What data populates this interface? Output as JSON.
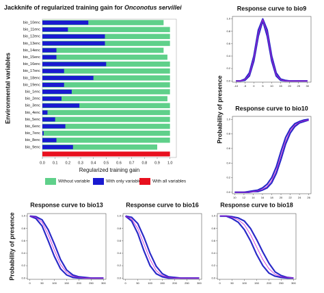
{
  "chart_data": [
    {
      "type": "hbar",
      "title": "Jackknife of regularized training gain for ",
      "title_italic": "Onconotus servillei",
      "xlabel": "Regularized training gain",
      "ylabel": "Environmental variables",
      "categories": [
        "bio_10enc",
        "bio_11enc",
        "bio_12enc",
        "bio_13enc",
        "bio_14enc",
        "bio_15enc",
        "bio_16enc",
        "bio_17enc",
        "bio_18enc",
        "bio_19enc",
        "bio_1enc",
        "bio_2enc",
        "bio_3enc",
        "bio_4enc",
        "bio_5enc",
        "bio_6enc",
        "bio_7enc",
        "bio_8enc",
        "bio_9enc"
      ],
      "series": [
        {
          "name": "Without variable",
          "color": "#5fd08a",
          "values": [
            0.95,
            1.0,
            1.0,
            1.0,
            0.95,
            0.98,
            1.0,
            1.0,
            1.0,
            1.0,
            1.0,
            0.98,
            1.0,
            1.0,
            1.0,
            1.0,
            1.0,
            1.0,
            0.9
          ]
        },
        {
          "name": "With only variable",
          "color": "#1a1ad0",
          "values": [
            0.36,
            0.2,
            0.49,
            0.49,
            0.11,
            0.11,
            0.5,
            0.17,
            0.4,
            0.17,
            0.23,
            0.15,
            0.29,
            0.04,
            0.1,
            0.18,
            0.01,
            0.11,
            0.24
          ]
        }
      ],
      "all_variables": {
        "name": "With all variables",
        "color": "#e8101e",
        "value": 1.0
      },
      "xlim": [
        0,
        1.05
      ],
      "xticks": [
        {
          "value": 0,
          "label": "0.0"
        },
        0.1,
        0.2,
        0.3,
        0.4,
        0.5,
        0.6,
        0.7,
        0.8,
        0.9,
        {
          "value": 1,
          "label": "1.0"
        }
      ]
    },
    {
      "type": "line",
      "title": "Response curve to bio9",
      "x": [
        -10,
        -7.5,
        -5,
        -2.5,
        0,
        2.5,
        5,
        7.5,
        10,
        12.5,
        15,
        17.5,
        20,
        22.5,
        25,
        27.5,
        30
      ],
      "series": [
        {
          "color": "#2a2ac8",
          "values": [
            0,
            0,
            0.03,
            0.13,
            0.4,
            0.82,
            1.0,
            0.82,
            0.4,
            0.13,
            0.03,
            0.01,
            0,
            0,
            0,
            0,
            0
          ]
        },
        {
          "color": "#2a2ac8",
          "values": [
            0,
            0,
            0.01,
            0.08,
            0.32,
            0.72,
            0.97,
            0.72,
            0.32,
            0.08,
            0.01,
            0,
            0,
            0,
            0,
            0,
            0
          ]
        },
        {
          "color": "#d020d0",
          "values": [
            0,
            0,
            0.02,
            0.1,
            0.36,
            0.77,
            0.99,
            0.77,
            0.36,
            0.1,
            0.02,
            0,
            0,
            0,
            0,
            0,
            0
          ]
        }
      ],
      "xlim": [
        -12,
        32
      ],
      "xticks": [
        -10,
        -5,
        0,
        5,
        10,
        15,
        20,
        25,
        30
      ],
      "ylim": [
        -0.02,
        1.04
      ],
      "yticks": [
        {
          "value": 0,
          "label": "0.0"
        },
        0.2,
        0.4,
        0.6,
        0.8,
        {
          "value": 1,
          "label": "1.0"
        }
      ]
    },
    {
      "type": "line",
      "title": "Response curve to bio10",
      "ylabel": "Probability of presence",
      "x": [
        10,
        11,
        12,
        13,
        14,
        15,
        16,
        17,
        18,
        19,
        20,
        21,
        22,
        23,
        24,
        25,
        26
      ],
      "series": [
        {
          "color": "#2a2ac8",
          "values": [
            0,
            0,
            0,
            0.01,
            0.02,
            0.03,
            0.06,
            0.11,
            0.2,
            0.35,
            0.56,
            0.75,
            0.87,
            0.94,
            0.97,
            0.99,
            1.0
          ]
        },
        {
          "color": "#2a2ac8",
          "values": [
            0,
            0,
            0,
            0,
            0.01,
            0.01,
            0.03,
            0.06,
            0.13,
            0.26,
            0.45,
            0.66,
            0.81,
            0.9,
            0.95,
            0.97,
            0.99
          ]
        },
        {
          "color": "#d020d0",
          "values": [
            0,
            0,
            0,
            0,
            0.01,
            0.02,
            0.04,
            0.08,
            0.16,
            0.3,
            0.5,
            0.7,
            0.84,
            0.92,
            0.96,
            0.98,
            0.99
          ]
        }
      ],
      "xlim": [
        9.5,
        26.5
      ],
      "xticks": [
        10,
        12,
        14,
        16,
        18,
        20,
        22,
        24,
        26
      ],
      "ylim": [
        -0.02,
        1.04
      ],
      "yticks": [
        {
          "value": 0,
          "label": "0.0"
        },
        0.2,
        0.4,
        0.6,
        0.8,
        {
          "value": 1,
          "label": "1.0"
        }
      ]
    },
    {
      "type": "line",
      "title": "Response curve to bio13",
      "ylabel": "Probability of presence",
      "x": [
        0,
        25,
        50,
        75,
        100,
        125,
        150,
        175,
        200,
        225,
        250,
        275,
        300
      ],
      "series": [
        {
          "color": "#2a2ac8",
          "values": [
            1,
            0.99,
            0.94,
            0.78,
            0.55,
            0.3,
            0.13,
            0.05,
            0.02,
            0.01,
            0,
            0,
            0
          ]
        },
        {
          "color": "#2a2ac8",
          "values": [
            1,
            0.96,
            0.84,
            0.6,
            0.35,
            0.15,
            0.05,
            0.01,
            0,
            0,
            0,
            0,
            0
          ]
        },
        {
          "color": "#d020d0",
          "values": [
            1,
            0.98,
            0.9,
            0.7,
            0.45,
            0.22,
            0.09,
            0.03,
            0.01,
            0,
            0,
            0,
            0
          ]
        }
      ],
      "xlim": [
        -10,
        310
      ],
      "xticks": [
        0,
        50,
        100,
        150,
        200,
        250,
        300
      ],
      "ylim": [
        -0.02,
        1.04
      ],
      "yticks": [
        {
          "value": 0,
          "label": "0.0"
        },
        0.2,
        0.4,
        0.6,
        0.8,
        {
          "value": 1,
          "label": "1.0"
        }
      ]
    },
    {
      "type": "line",
      "title": "Response curve to bio16",
      "x": [
        0,
        25,
        50,
        75,
        100,
        125,
        150,
        175,
        200,
        225,
        250,
        275,
        300
      ],
      "series": [
        {
          "color": "#2a2ac8",
          "values": [
            1,
            0.98,
            0.88,
            0.66,
            0.4,
            0.19,
            0.07,
            0.02,
            0.01,
            0,
            0,
            0,
            0
          ]
        },
        {
          "color": "#2a2ac8",
          "values": [
            1,
            0.92,
            0.72,
            0.44,
            0.2,
            0.07,
            0.02,
            0,
            0,
            0,
            0,
            0,
            0
          ]
        },
        {
          "color": "#d020d0",
          "values": [
            1,
            0.95,
            0.8,
            0.55,
            0.3,
            0.12,
            0.04,
            0.01,
            0,
            0,
            0,
            0,
            0
          ]
        }
      ],
      "xlim": [
        -10,
        310
      ],
      "xticks": [
        0,
        50,
        100,
        150,
        200,
        250,
        300
      ],
      "ylim": [
        -0.02,
        1.04
      ],
      "yticks": [
        {
          "value": 0,
          "label": "0.0"
        },
        0.2,
        0.4,
        0.6,
        0.8,
        {
          "value": 1,
          "label": "1.0"
        }
      ]
    },
    {
      "type": "line",
      "title": "Response curve to bio18",
      "x": [
        0,
        25,
        50,
        75,
        100,
        125,
        150,
        175,
        200,
        225,
        250,
        275,
        300
      ],
      "series": [
        {
          "color": "#2a2ac8",
          "values": [
            1,
            1,
            0.99,
            0.97,
            0.92,
            0.8,
            0.62,
            0.42,
            0.24,
            0.1,
            0.04,
            0.01,
            0
          ]
        },
        {
          "color": "#2a2ac8",
          "values": [
            1,
            1,
            0.96,
            0.9,
            0.78,
            0.6,
            0.38,
            0.2,
            0.08,
            0.03,
            0.01,
            0,
            0
          ]
        },
        {
          "color": "#d020d0",
          "values": [
            1,
            1,
            0.98,
            0.94,
            0.86,
            0.7,
            0.5,
            0.3,
            0.15,
            0.06,
            0.02,
            0.01,
            0
          ]
        }
      ],
      "xlim": [
        -10,
        310
      ],
      "xticks": [
        0,
        50,
        100,
        150,
        200,
        250,
        300
      ],
      "ylim": [
        -0.02,
        1.04
      ],
      "yticks": [
        {
          "value": 0,
          "label": "0.0"
        },
        0.2,
        0.4,
        0.6,
        0.8,
        {
          "value": 1,
          "label": "1.0"
        }
      ]
    }
  ]
}
